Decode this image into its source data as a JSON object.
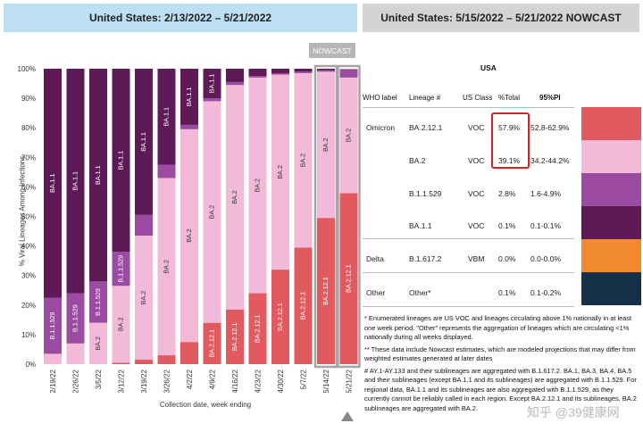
{
  "headers": {
    "left": "United States: 2/13/2022 – 5/21/2022",
    "right": "United States: 5/15/2022 – 5/21/2022 NOWCAST"
  },
  "nowcast_badge": "NOWCAST",
  "colors": {
    "BA.2.12.1": "#e05a5f",
    "BA.2": "#f2b9d8",
    "B.1.1.529": "#9c4ba3",
    "BA.1.1": "#5e1a56",
    "Delta": "#f28a2e",
    "Other": "#173049",
    "nowcast_border": "#a5a5a5",
    "highlight_box": "#e02020"
  },
  "chart_data": {
    "type": "bar",
    "stacked": true,
    "ylabel": "% Viral Lineages Among Infections",
    "xlabel": "Collection date, week ending",
    "ylim": [
      0,
      100
    ],
    "yticks": [
      "0%",
      "10%",
      "20%",
      "30%",
      "40%",
      "50%",
      "60%",
      "70%",
      "80%",
      "90%",
      "100%"
    ],
    "categories": [
      "2/19/22",
      "2/26/22",
      "3/5/22",
      "3/12/22",
      "3/19/22",
      "3/26/22",
      "4/2/22",
      "4/9/22",
      "4/16/22",
      "4/23/22",
      "4/30/22",
      "5/7/22",
      "5/14/22",
      "5/21/22"
    ],
    "nowcast_categories": [
      "5/14/22",
      "5/21/22"
    ],
    "series": [
      {
        "name": "BA.2.12.1",
        "values": [
          0,
          0,
          0,
          0.5,
          1.5,
          3,
          7.5,
          14,
          18.5,
          24,
          32,
          39.5,
          49.5,
          57.9
        ]
      },
      {
        "name": "BA.2",
        "values": [
          3.5,
          7,
          14,
          26,
          42,
          60,
          72,
          75,
          76,
          73,
          66,
          59,
          49.5,
          39.1
        ]
      },
      {
        "name": "B.1.1.529",
        "values": [
          19,
          17,
          14,
          11.5,
          7,
          4.5,
          1.5,
          1,
          1,
          0.5,
          0.5,
          0.5,
          0.5,
          2.8
        ]
      },
      {
        "name": "BA.1.1",
        "values": [
          77.5,
          76,
          72,
          62,
          49.5,
          32.5,
          19,
          10,
          4.5,
          2.5,
          1.5,
          1,
          0.5,
          0.1
        ]
      }
    ],
    "bar_labels": [
      [
        "B.1.1.529",
        "BA.1.1"
      ],
      [
        "B.1.1.529",
        "BA.1.1"
      ],
      [
        "BA.2",
        "B.1.1.529",
        "BA.1.1"
      ],
      [
        "BA.2",
        "B.1.1.529",
        "BA.1.1"
      ],
      [
        "BA.2",
        "BA.1.1"
      ],
      [
        "BA.2",
        "BA.1.1"
      ],
      [
        "BA.2",
        "BA.1.1"
      ],
      [
        "BA.2.12.1",
        "BA.2",
        "BA.1.1"
      ],
      [
        "BA.2.12.1",
        "BA.2"
      ],
      [
        "BA.2.12.1",
        "BA.2"
      ],
      [
        "BA.2.12.1",
        "BA.2"
      ],
      [
        "BA.2.12.1",
        "BA.2"
      ],
      [
        "BA.2.12.1",
        "BA.2"
      ],
      [
        "BA.2.12.1",
        "BA.2"
      ]
    ]
  },
  "table": {
    "title": "USA",
    "columns": [
      "WHO label",
      "Lineage #",
      "US Class",
      "%Total",
      "95%PI"
    ],
    "rows": [
      {
        "who": "Omicron",
        "lineage": "BA.2.12.1",
        "class": "VOC",
        "pct": "57.9%",
        "pi": "52.8-62.9%",
        "color": "#e05a5f"
      },
      {
        "who": "",
        "lineage": "BA.2",
        "class": "VOC",
        "pct": "39.1%",
        "pi": "34.2-44.2%",
        "color": "#f2b9d8"
      },
      {
        "who": "",
        "lineage": "B.1.1.529",
        "class": "VOC",
        "pct": "2.8%",
        "pi": "1.6-4.9%",
        "color": "#9c4ba3"
      },
      {
        "who": "",
        "lineage": "BA.1.1",
        "class": "VOC",
        "pct": "0.1%",
        "pi": "0.1-0.1%",
        "color": "#5e1a56"
      },
      {
        "who": "Delta",
        "lineage": "B.1.617.2",
        "class": "VBM",
        "pct": "0.0%",
        "pi": "0.0-0.0%",
        "color": "#f28a2e"
      },
      {
        "who": "Other",
        "lineage": "Other*",
        "class": "",
        "pct": "0.1%",
        "pi": "0.1-0.2%",
        "color": "#173049"
      }
    ]
  },
  "notes": [
    "*      Enumerated lineages are US VOC and lineages circulating above 1% nationally in at least one week period. \"Other\" represents the aggregation of lineages which are circulating <1% nationally during all weeks displayed.",
    "**     These data include Nowcast estimates, which are modeled projections that may differ from weighted estimates generated at later dates",
    "#      AY.1-AY.133 and their sublineages are aggregated with B.1.617.2. BA.1, BA.3, BA.4, BA.5 and their sublineages (except BA.1.1 and its sublineages) are aggregated with B.1.1.529. For regional data, BA.1.1 and its sublineages are also aggregated with B.1.1.529, as they currently cannot be reliably called in each region. Except BA.2.12.1 and its sublineages, BA.2 sublineages are aggregated with BA.2."
  ],
  "watermark": "知乎 @39健康网"
}
